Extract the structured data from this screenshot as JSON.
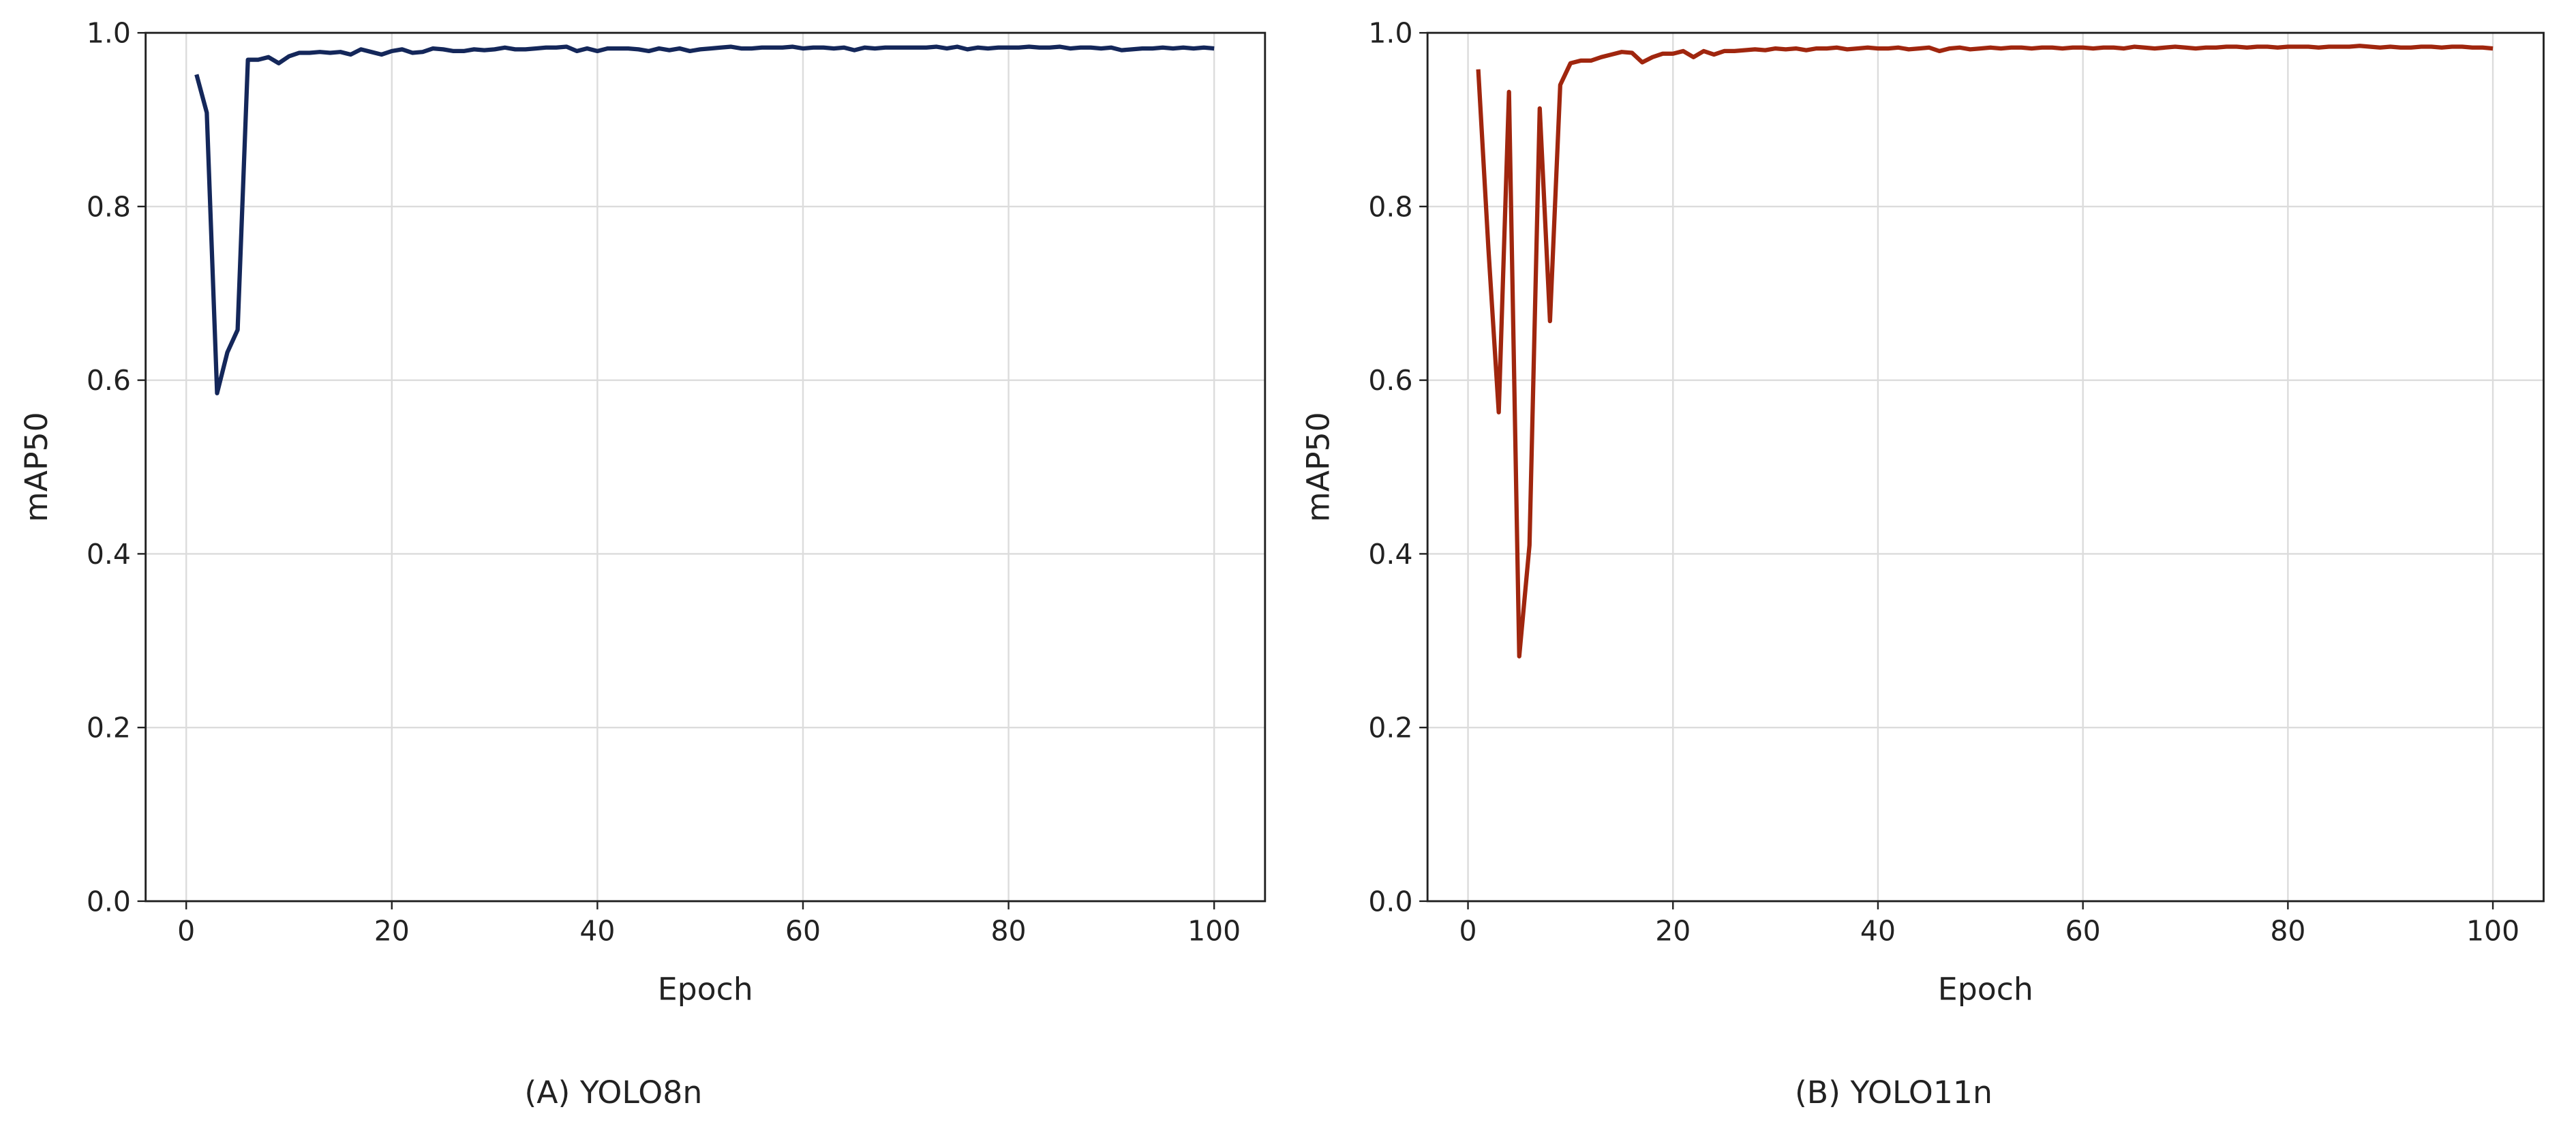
{
  "chart_data": [
    {
      "type": "line",
      "caption": "(A) YOLO8n",
      "xlabel": "Epoch",
      "ylabel": "mAP50",
      "color": "#14275a",
      "grid": true,
      "xlim": [
        -3.95,
        104.95
      ],
      "xticks": [
        0,
        20,
        40,
        60,
        80,
        100
      ],
      "ylim": [
        0,
        1
      ],
      "yticks": [
        {
          "value": 0,
          "label": "0.0"
        },
        0.2,
        0.4,
        0.6,
        0.8,
        {
          "value": 1,
          "label": "1.0"
        }
      ],
      "x": [
        1,
        2,
        3,
        4,
        5,
        6,
        7,
        8,
        9,
        10,
        11,
        12,
        13,
        14,
        15,
        16,
        17,
        18,
        19,
        20,
        21,
        22,
        23,
        24,
        25,
        26,
        27,
        28,
        29,
        30,
        31,
        32,
        33,
        34,
        35,
        36,
        37,
        38,
        39,
        40,
        41,
        42,
        43,
        44,
        45,
        46,
        47,
        48,
        49,
        50,
        51,
        52,
        53,
        54,
        55,
        56,
        57,
        58,
        59,
        60,
        61,
        62,
        63,
        64,
        65,
        66,
        67,
        68,
        69,
        70,
        71,
        72,
        73,
        74,
        75,
        76,
        77,
        78,
        79,
        80,
        81,
        82,
        83,
        84,
        85,
        86,
        87,
        88,
        89,
        90,
        91,
        92,
        93,
        94,
        95,
        96,
        97,
        98,
        99,
        100
      ],
      "values": [
        0.952,
        0.908,
        0.585,
        0.632,
        0.658,
        0.969,
        0.969,
        0.972,
        0.965,
        0.973,
        0.977,
        0.977,
        0.978,
        0.977,
        0.978,
        0.975,
        0.981,
        0.978,
        0.975,
        0.979,
        0.981,
        0.977,
        0.978,
        0.982,
        0.981,
        0.979,
        0.979,
        0.981,
        0.98,
        0.981,
        0.983,
        0.981,
        0.981,
        0.982,
        0.983,
        0.983,
        0.984,
        0.979,
        0.982,
        0.979,
        0.982,
        0.982,
        0.982,
        0.981,
        0.979,
        0.982,
        0.98,
        0.982,
        0.979,
        0.981,
        0.982,
        0.983,
        0.984,
        0.982,
        0.982,
        0.983,
        0.983,
        0.983,
        0.984,
        0.982,
        0.983,
        0.983,
        0.982,
        0.983,
        0.98,
        0.983,
        0.982,
        0.983,
        0.983,
        0.983,
        0.983,
        0.983,
        0.984,
        0.982,
        0.984,
        0.981,
        0.983,
        0.982,
        0.983,
        0.983,
        0.983,
        0.984,
        0.983,
        0.983,
        0.984,
        0.982,
        0.983,
        0.983,
        0.982,
        0.983,
        0.98,
        0.981,
        0.982,
        0.982,
        0.983,
        0.982,
        0.983,
        0.982,
        0.983,
        0.982
      ]
    },
    {
      "type": "line",
      "caption": "(B) YOLO11n",
      "xlabel": "Epoch",
      "ylabel": "mAP50",
      "color": "#a0260e",
      "grid": true,
      "xlim": [
        -3.95,
        104.95
      ],
      "xticks": [
        0,
        20,
        40,
        60,
        80,
        100
      ],
      "ylim": [
        0,
        1
      ],
      "yticks": [
        {
          "value": 0,
          "label": "0.0"
        },
        0.2,
        0.4,
        0.6,
        0.8,
        {
          "value": 1,
          "label": "1.0"
        }
      ],
      "x": [
        1,
        2,
        3,
        4,
        5,
        6,
        7,
        8,
        9,
        10,
        11,
        12,
        13,
        14,
        15,
        16,
        17,
        18,
        19,
        20,
        21,
        22,
        23,
        24,
        25,
        26,
        27,
        28,
        29,
        30,
        31,
        32,
        33,
        34,
        35,
        36,
        37,
        38,
        39,
        40,
        41,
        42,
        43,
        44,
        45,
        46,
        47,
        48,
        49,
        50,
        51,
        52,
        53,
        54,
        55,
        56,
        57,
        58,
        59,
        60,
        61,
        62,
        63,
        64,
        65,
        66,
        67,
        68,
        69,
        70,
        71,
        72,
        73,
        74,
        75,
        76,
        77,
        78,
        79,
        80,
        81,
        82,
        83,
        84,
        85,
        86,
        87,
        88,
        89,
        90,
        91,
        92,
        93,
        94,
        95,
        96,
        97,
        98,
        99,
        100
      ],
      "values": [
        0.958,
        0.75,
        0.563,
        0.932,
        0.282,
        0.41,
        0.913,
        0.668,
        0.94,
        0.965,
        0.968,
        0.968,
        0.972,
        0.975,
        0.978,
        0.977,
        0.966,
        0.972,
        0.976,
        0.976,
        0.979,
        0.972,
        0.979,
        0.975,
        0.979,
        0.979,
        0.98,
        0.981,
        0.98,
        0.982,
        0.981,
        0.982,
        0.98,
        0.982,
        0.982,
        0.983,
        0.981,
        0.982,
        0.983,
        0.982,
        0.982,
        0.983,
        0.981,
        0.982,
        0.983,
        0.979,
        0.982,
        0.983,
        0.981,
        0.982,
        0.983,
        0.982,
        0.983,
        0.983,
        0.982,
        0.983,
        0.983,
        0.982,
        0.983,
        0.983,
        0.982,
        0.983,
        0.983,
        0.982,
        0.984,
        0.983,
        0.982,
        0.983,
        0.984,
        0.983,
        0.982,
        0.983,
        0.983,
        0.984,
        0.984,
        0.983,
        0.984,
        0.984,
        0.983,
        0.984,
        0.984,
        0.984,
        0.983,
        0.984,
        0.984,
        0.984,
        0.985,
        0.984,
        0.983,
        0.984,
        0.983,
        0.983,
        0.984,
        0.984,
        0.983,
        0.984,
        0.984,
        0.983,
        0.983,
        0.982
      ]
    }
  ]
}
